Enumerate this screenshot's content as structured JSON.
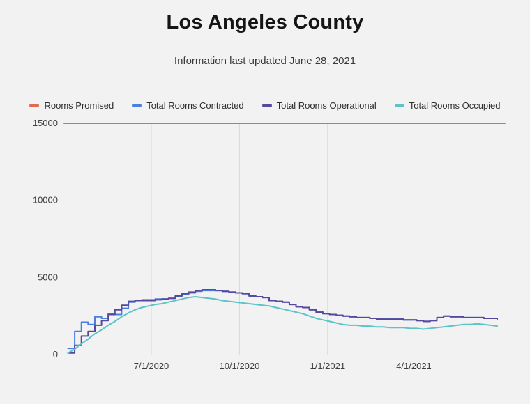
{
  "page": {
    "title": "Los Angeles County",
    "subtitle": "Information last updated June 28, 2021"
  },
  "chart_data": {
    "type": "line",
    "title": "Los Angeles County",
    "subtitle": "Information last updated June 28, 2021",
    "xlabel": "",
    "ylabel": "",
    "legend_position": "top",
    "grid": "vertical-only",
    "x_range": [
      "2020-04-01",
      "2021-07-05"
    ],
    "y_range": [
      0,
      15000
    ],
    "y_ticks": [
      0,
      5000,
      10000,
      15000
    ],
    "x_ticks": [
      {
        "date": "2020-07-01",
        "label": "7/1/2020"
      },
      {
        "date": "2020-10-01",
        "label": "10/1/2020"
      },
      {
        "date": "2021-01-01",
        "label": "1/1/2021"
      },
      {
        "date": "2021-04-01",
        "label": "4/1/2021"
      }
    ],
    "x": [
      "2020-04-05",
      "2020-04-12",
      "2020-04-19",
      "2020-04-26",
      "2020-05-03",
      "2020-05-10",
      "2020-05-17",
      "2020-05-24",
      "2020-05-31",
      "2020-06-07",
      "2020-06-14",
      "2020-06-21",
      "2020-06-28",
      "2020-07-05",
      "2020-07-12",
      "2020-07-19",
      "2020-07-26",
      "2020-08-02",
      "2020-08-09",
      "2020-08-16",
      "2020-08-23",
      "2020-08-30",
      "2020-09-06",
      "2020-09-13",
      "2020-09-20",
      "2020-09-27",
      "2020-10-04",
      "2020-10-11",
      "2020-10-18",
      "2020-10-25",
      "2020-11-01",
      "2020-11-08",
      "2020-11-15",
      "2020-11-22",
      "2020-11-29",
      "2020-12-06",
      "2020-12-13",
      "2020-12-20",
      "2020-12-27",
      "2021-01-03",
      "2021-01-10",
      "2021-01-17",
      "2021-01-24",
      "2021-01-31",
      "2021-02-07",
      "2021-02-14",
      "2021-02-21",
      "2021-02-28",
      "2021-03-07",
      "2021-03-14",
      "2021-03-21",
      "2021-03-28",
      "2021-04-04",
      "2021-04-11",
      "2021-04-18",
      "2021-04-25",
      "2021-05-02",
      "2021-05-09",
      "2021-05-16",
      "2021-05-23",
      "2021-05-30",
      "2021-06-06",
      "2021-06-13",
      "2021-06-20",
      "2021-06-27"
    ],
    "series": [
      {
        "name": "Rooms Promised",
        "color": "#e36a50",
        "constant_value": 15000
      },
      {
        "name": "Total Rooms Contracted",
        "color": "#4a7ee3",
        "step": true,
        "y": [
          400,
          1500,
          2100,
          1950,
          2450,
          2350,
          2650,
          2600,
          3000,
          3400,
          3500,
          3550,
          3550,
          3600,
          3600,
          3650,
          3800,
          3900,
          4000,
          4100,
          4150,
          4150,
          4150,
          4100,
          4050,
          4000,
          3950,
          3800,
          3750,
          3700,
          3500,
          3450,
          3400,
          3250,
          3100,
          3050,
          2900,
          2750,
          2650,
          2600,
          2550,
          2500,
          2450,
          2400,
          2400,
          2350,
          2300,
          2300,
          2300,
          2300,
          2250,
          2250,
          2200,
          2150,
          2200,
          2400,
          2500,
          2450,
          2450,
          2400,
          2400,
          2400,
          2350,
          2350,
          2300
        ]
      },
      {
        "name": "Total Rooms Operational",
        "color": "#55489d",
        "step": true,
        "y": [
          100,
          600,
          1200,
          1500,
          1900,
          2200,
          2600,
          2900,
          3200,
          3450,
          3500,
          3500,
          3500,
          3550,
          3600,
          3650,
          3800,
          3950,
          4050,
          4150,
          4200,
          4200,
          4150,
          4100,
          4050,
          4000,
          3950,
          3800,
          3750,
          3700,
          3500,
          3450,
          3400,
          3250,
          3100,
          3050,
          2900,
          2750,
          2650,
          2600,
          2550,
          2500,
          2450,
          2400,
          2400,
          2350,
          2300,
          2300,
          2300,
          2300,
          2250,
          2250,
          2200,
          2150,
          2200,
          2400,
          2500,
          2450,
          2450,
          2400,
          2400,
          2400,
          2350,
          2350,
          2300
        ]
      },
      {
        "name": "Total Rooms Occupied",
        "color": "#5cc3c9",
        "step": false,
        "y": [
          100,
          350,
          700,
          1000,
          1350,
          1600,
          1900,
          2150,
          2450,
          2700,
          2900,
          3050,
          3150,
          3250,
          3300,
          3400,
          3500,
          3600,
          3700,
          3750,
          3700,
          3650,
          3600,
          3500,
          3450,
          3400,
          3350,
          3300,
          3250,
          3200,
          3150,
          3050,
          2950,
          2850,
          2750,
          2650,
          2500,
          2350,
          2250,
          2150,
          2050,
          1950,
          1900,
          1900,
          1850,
          1850,
          1800,
          1800,
          1750,
          1750,
          1750,
          1700,
          1700,
          1650,
          1700,
          1750,
          1800,
          1850,
          1900,
          1950,
          1950,
          2000,
          1950,
          1900,
          1850
        ]
      }
    ]
  }
}
